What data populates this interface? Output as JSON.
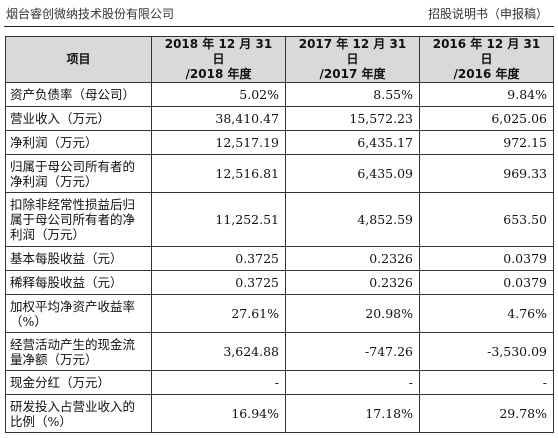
{
  "header": {
    "company": "烟台睿创微纳技术股份有限公司",
    "doc_type": "招股说明书（申报稿）"
  },
  "table": {
    "columns": [
      "项目",
      "2018 年 12 月 31 日\n/2018 年度",
      "2017 年 12 月 31 日\n/2017 年度",
      "2016 年 12 月 31 日\n/2016 年度"
    ],
    "rows": [
      {
        "label": "资产负债率（母公司）",
        "values": [
          "5.02%",
          "8.55%",
          "9.84%"
        ]
      },
      {
        "label": "营业收入（万元）",
        "values": [
          "38,410.47",
          "15,572.23",
          "6,025.06"
        ]
      },
      {
        "label": "净利润（万元）",
        "values": [
          "12,517.19",
          "6,435.17",
          "972.15"
        ]
      },
      {
        "label": "归属于母公司所有者的净利润（万元）",
        "values": [
          "12,516.81",
          "6,435.09",
          "969.33"
        ]
      },
      {
        "label": "扣除非经常性损益后归属于母公司所有者的净利润（万元）",
        "values": [
          "11,252.51",
          "4,852.59",
          "653.50"
        ]
      },
      {
        "label": "基本每股收益（元）",
        "values": [
          "0.3725",
          "0.2326",
          "0.0379"
        ]
      },
      {
        "label": "稀释每股收益（元）",
        "values": [
          "0.3725",
          "0.2326",
          "0.0379"
        ]
      },
      {
        "label": "加权平均净资产收益率（%）",
        "values": [
          "27.61%",
          "20.98%",
          "4.76%"
        ]
      },
      {
        "label": "经营活动产生的现金流量净额（万元）",
        "values": [
          "3,624.88",
          "-747.26",
          "-3,530.09"
        ]
      },
      {
        "label": "现金分红（万元）",
        "values": [
          "-",
          "-",
          "-"
        ]
      },
      {
        "label": "研发投入占营业收入的比例（%）",
        "values": [
          "16.94%",
          "17.18%",
          "29.78%"
        ]
      }
    ]
  }
}
